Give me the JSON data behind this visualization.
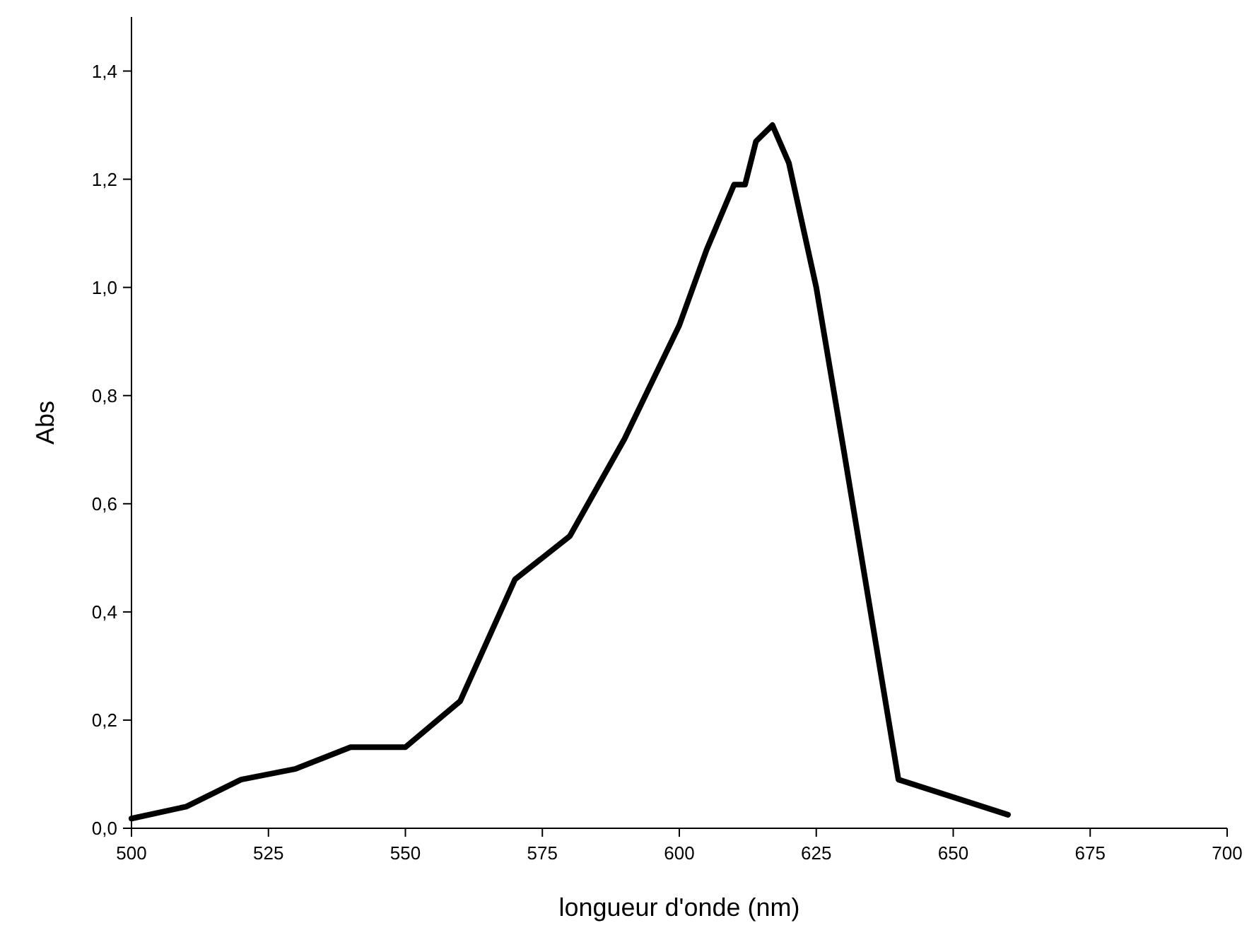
{
  "chart_data": {
    "type": "line",
    "xlabel": "longueur d'onde (nm)",
    "ylabel": "Abs",
    "xlim": [
      500,
      700
    ],
    "xticks": [
      500,
      525,
      550,
      575,
      600,
      625,
      650,
      675,
      700
    ],
    "ylim": [
      0,
      1.5
    ],
    "yticks": [
      {
        "value": 0,
        "label": "0,0"
      },
      {
        "value": 0.2,
        "label": "0,2"
      },
      {
        "value": 0.4,
        "label": "0,4"
      },
      {
        "value": 0.6,
        "label": "0,6"
      },
      {
        "value": 0.8,
        "label": "0,8"
      },
      {
        "value": 1.0,
        "label": "1,0"
      },
      {
        "value": 1.2,
        "label": "1,2"
      },
      {
        "value": 1.4,
        "label": "1,4"
      }
    ],
    "grid": false,
    "marker": "none",
    "line_style": "solid",
    "series": [
      {
        "color": "#000000",
        "x": [
          500,
          510,
          520,
          530,
          540,
          550,
          560,
          570,
          580,
          590,
          600,
          605,
          610,
          612,
          614,
          617,
          620,
          625,
          630,
          640,
          660
        ],
        "values": [
          0.018,
          0.04,
          0.09,
          0.11,
          0.15,
          0.15,
          0.235,
          0.46,
          0.54,
          0.72,
          0.93,
          1.07,
          1.19,
          1.19,
          1.27,
          1.3,
          1.23,
          1.0,
          0.7,
          0.09,
          0.025
        ]
      }
    ]
  }
}
